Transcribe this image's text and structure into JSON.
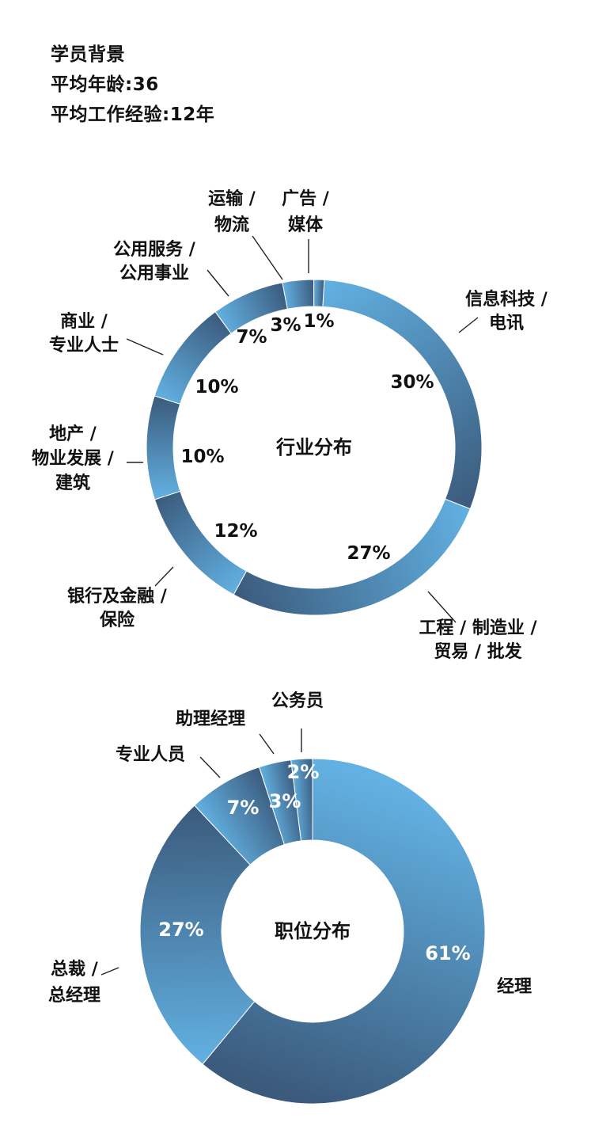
{
  "header": {
    "title": "学员背景",
    "avg_age": "平均年龄:36",
    "avg_experience": "平均工作经验:12年"
  },
  "chart_data": [
    {
      "type": "pie",
      "title": "行业分布",
      "categories": [
        "信息科技 / 电讯",
        "工程 / 制造业 / 贸易 / 批发",
        "银行及金融 / 保险",
        "地产 / 物业发展 / 建筑",
        "商业 / 专业人士",
        "公用服务 / 公用事业",
        "运输 / 物流",
        "广告 / 媒体"
      ],
      "values": [
        30,
        27,
        12,
        10,
        10,
        7,
        3,
        1
      ],
      "value_labels": [
        "30%",
        "27%",
        "12%",
        "10%",
        "10%",
        "7%",
        "3%",
        "1%"
      ],
      "label_lines": [
        [
          "信息科技 /",
          "电讯"
        ],
        [
          "工程 / 制造业 /",
          "贸易 / 批发"
        ],
        [
          "银行及金融 /",
          "保险"
        ],
        [
          "地产 /",
          "物业发展 /",
          "建筑"
        ],
        [
          "商业 /",
          "专业人士"
        ],
        [
          "公用服务 /",
          "公用事业"
        ],
        [
          "运输 /",
          "物流"
        ],
        [
          "广告 /",
          "媒体"
        ]
      ],
      "colors": {
        "light": "#62b1e2",
        "dark": "#3b5a7c"
      }
    },
    {
      "type": "pie",
      "title": "职位分布",
      "categories": [
        "经理",
        "总裁 / 总经理",
        "专业人员",
        "助理经理",
        "公务员"
      ],
      "values": [
        61,
        27,
        7,
        3,
        2
      ],
      "value_labels": [
        "61%",
        "27%",
        "7%",
        "3%",
        "2%"
      ],
      "label_lines": [
        [
          "经理"
        ],
        [
          "总裁 /",
          "总经理"
        ],
        [
          "专业人员"
        ],
        [
          "助理经理"
        ],
        [
          "公务员"
        ]
      ],
      "colors": {
        "light": "#62b1e2",
        "dark": "#3b5a7c"
      }
    }
  ]
}
